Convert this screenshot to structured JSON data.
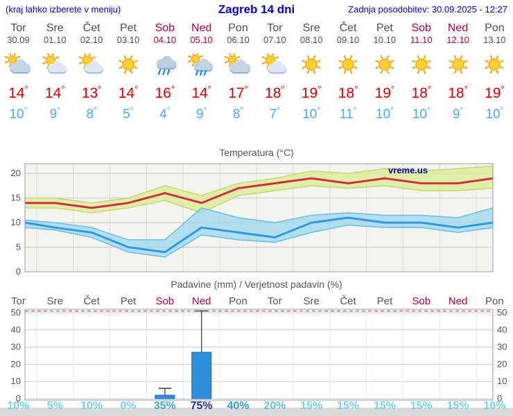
{
  "header": {
    "left_note": "(kraj lahko izberete v meniju)",
    "title": "Zagreb 14 dni",
    "updated": "Zadnja posodobitev: 30.09.2025 - 12:27"
  },
  "days": [
    {
      "name": "Tor",
      "date": "30.09",
      "weekend": false,
      "icon": "cloudy",
      "tmax": 14,
      "tmin": 10,
      "prob": "10%",
      "prob_color": "#74d2ec"
    },
    {
      "name": "Sre",
      "date": "01.10",
      "weekend": false,
      "icon": "partly",
      "tmax": 14,
      "tmin": 9,
      "prob": "5%",
      "prob_color": "#74d2ec"
    },
    {
      "name": "Čet",
      "date": "02.10",
      "weekend": false,
      "icon": "partly",
      "tmax": 13,
      "tmin": 8,
      "prob": "10%",
      "prob_color": "#74d2ec"
    },
    {
      "name": "Pet",
      "date": "03.10",
      "weekend": false,
      "icon": "sunny",
      "tmax": 14,
      "tmin": 5,
      "prob": "0%",
      "prob_color": "#74d2ec"
    },
    {
      "name": "Sob",
      "date": "04.10",
      "weekend": true,
      "icon": "rain",
      "tmax": 16,
      "tmin": 4,
      "prob": "35%",
      "prob_color": "#3da4d4"
    },
    {
      "name": "Ned",
      "date": "05.10",
      "weekend": true,
      "icon": "showers",
      "tmax": 14,
      "tmin": 9,
      "prob": "75%",
      "prob_color": "#1f2fae"
    },
    {
      "name": "Pon",
      "date": "06.10",
      "weekend": false,
      "icon": "cloudy",
      "tmax": 17,
      "tmin": 8,
      "prob": "40%",
      "prob_color": "#3a9bce"
    },
    {
      "name": "Tor",
      "date": "07.10",
      "weekend": false,
      "icon": "partly",
      "tmax": 18,
      "tmin": 7,
      "prob": "20%",
      "prob_color": "#5fc2e4"
    },
    {
      "name": "Sre",
      "date": "08.10",
      "weekend": false,
      "icon": "sunny",
      "tmax": 19,
      "tmin": 10,
      "prob": "15%",
      "prob_color": "#74d2ec"
    },
    {
      "name": "Čet",
      "date": "09.10",
      "weekend": false,
      "icon": "sunny",
      "tmax": 18,
      "tmin": 11,
      "prob": "15%",
      "prob_color": "#74d2ec"
    },
    {
      "name": "Pet",
      "date": "10.10",
      "weekend": false,
      "icon": "sunny",
      "tmax": 19,
      "tmin": 10,
      "prob": "15%",
      "prob_color": "#74d2ec"
    },
    {
      "name": "Sob",
      "date": "11.10",
      "weekend": true,
      "icon": "sunny",
      "tmax": 18,
      "tmin": 10,
      "prob": "15%",
      "prob_color": "#74d2ec"
    },
    {
      "name": "Ned",
      "date": "12.10",
      "weekend": true,
      "icon": "sunny",
      "tmax": 18,
      "tmin": 9,
      "prob": "15%",
      "prob_color": "#74d2ec"
    },
    {
      "name": "Pon",
      "date": "13.10",
      "weekend": false,
      "icon": "sunny",
      "tmax": 19,
      "tmin": 10,
      "prob": "10%",
      "prob_color": "#74d2ec"
    }
  ],
  "chart_data": [
    {
      "type": "line",
      "title": "Temperatura (°C)",
      "watermark": "vreme.us",
      "categories": [
        "30.09",
        "01.10",
        "02.10",
        "03.10",
        "04.10",
        "05.10",
        "06.10",
        "07.10",
        "08.10",
        "09.10",
        "10.10",
        "11.10",
        "12.10",
        "13.10"
      ],
      "ylim": [
        0,
        22
      ],
      "yticks": [
        0,
        5,
        10,
        15,
        20
      ],
      "grid": true,
      "series": [
        {
          "name": "max",
          "values": [
            14,
            14,
            13,
            14,
            16,
            14,
            17,
            18,
            19,
            18,
            19,
            18,
            18,
            19
          ]
        },
        {
          "name": "max_range_hi",
          "values": [
            15,
            15,
            14,
            15,
            17.5,
            15.5,
            18,
            19,
            20.5,
            20,
            21,
            20.5,
            21,
            21.5
          ]
        },
        {
          "name": "max_range_lo",
          "values": [
            13,
            13,
            12,
            13,
            14.5,
            12,
            15.5,
            16.5,
            17.5,
            17,
            17.5,
            16.5,
            16.5,
            17
          ]
        },
        {
          "name": "min",
          "values": [
            10,
            9,
            8,
            5,
            4,
            9,
            8,
            7,
            10,
            11,
            10,
            10,
            9,
            10
          ]
        },
        {
          "name": "min_range_hi",
          "values": [
            10.5,
            10,
            9,
            6.5,
            6.5,
            13,
            11,
            10,
            11.5,
            12,
            11.5,
            11.5,
            11,
            13
          ]
        },
        {
          "name": "min_range_lo",
          "values": [
            9,
            8.5,
            7,
            4,
            3,
            7.5,
            6.5,
            6,
            8,
            9.5,
            9,
            9,
            8,
            9
          ]
        }
      ],
      "colors": {
        "max_line": "#d22d3f",
        "min_line": "#2b9ade",
        "max_band": "#dcec9b",
        "max_band_edge": "#c2d96a",
        "min_band": "#9ed7f0",
        "min_band_edge": "#66bde6",
        "plot_bg": "#f3f3ef",
        "watermark": "#000099"
      }
    },
    {
      "type": "bar",
      "title": "Padavine (mm) / Verjetnost padavin (%)",
      "categories": [
        "Tor",
        "Sre",
        "Čet",
        "Pet",
        "Sob",
        "Ned",
        "Pon",
        "Tor",
        "Sre",
        "Čet",
        "Pet",
        "Sob",
        "Ned",
        "Pon"
      ],
      "values": [
        0,
        0,
        0,
        0,
        2,
        27,
        0,
        0,
        0,
        0,
        0,
        0,
        0,
        0
      ],
      "whisker_hi": [
        null,
        null,
        null,
        null,
        6,
        51,
        null,
        null,
        null,
        null,
        null,
        null,
        null,
        null
      ],
      "probabilities_pct": [
        10,
        5,
        10,
        0,
        35,
        75,
        40,
        20,
        15,
        15,
        15,
        15,
        15,
        10
      ],
      "ylim": [
        0,
        52
      ],
      "yticks": [
        0,
        10,
        20,
        30,
        40,
        50
      ],
      "threshold_line": 51,
      "colors": {
        "bar": "#2e8fdc",
        "bar_edge": "#1a6ab0",
        "threshold": "#e04040",
        "whisker": "#333333"
      }
    }
  ]
}
